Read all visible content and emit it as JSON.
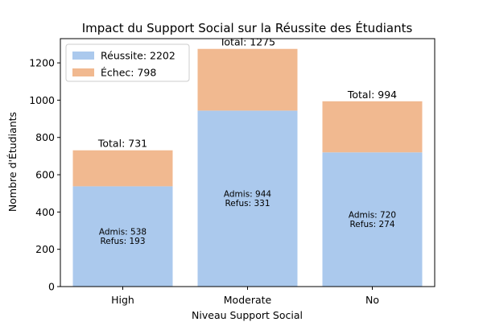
{
  "chart_data": {
    "type": "bar",
    "stacked": true,
    "title": "Impact du Support Social sur la Réussite des Étudiants",
    "xlabel": "Niveau Support Social",
    "ylabel": "Nombre d'Étudiants",
    "categories": [
      "High",
      "Moderate",
      "No"
    ],
    "series": [
      {
        "name": "Réussite: 2202",
        "values": [
          538,
          944,
          720
        ],
        "color": "#abc9ed"
      },
      {
        "name": "Échec: 798",
        "values": [
          193,
          331,
          274
        ],
        "color": "#f1b990"
      }
    ],
    "totals": [
      "Total: 731",
      "Total: 1275",
      "Total: 994"
    ],
    "inner_labels": [
      [
        "Admis: 538",
        "Refus: 193"
      ],
      [
        "Admis: 944",
        "Refus: 331"
      ],
      [
        "Admis: 720",
        "Refus: 274"
      ]
    ],
    "ylim": [
      0,
      1330
    ],
    "yticks": [
      0,
      200,
      400,
      600,
      800,
      1000,
      1200
    ],
    "legend": "top-left",
    "grid": false
  }
}
